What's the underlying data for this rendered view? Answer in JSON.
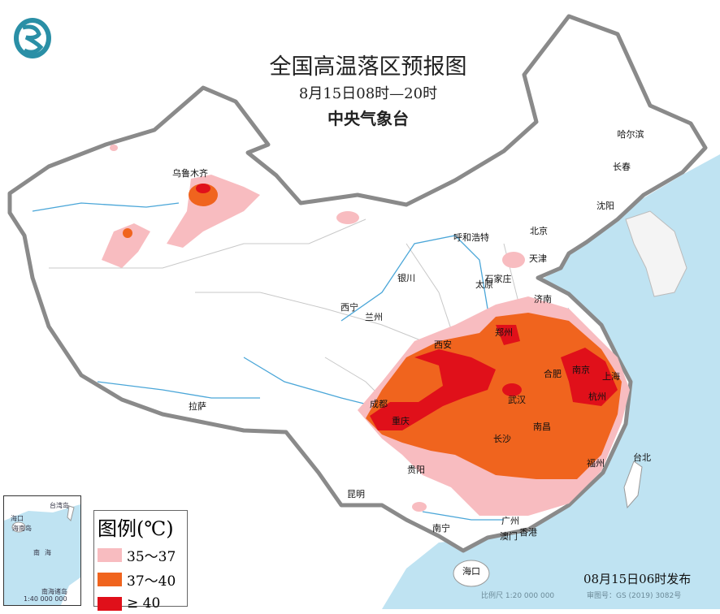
{
  "header": {
    "title": "全国高温落区预报图",
    "period": "8月15日08时—20时",
    "issuer": "中央气象台"
  },
  "legend": {
    "title": "图例(℃)",
    "items": [
      {
        "label": "35～37",
        "color": "#f8bcc0"
      },
      {
        "label": "37～40",
        "color": "#f0641e"
      },
      {
        "label": "≥ 40",
        "color": "#e0101a"
      }
    ]
  },
  "cities": [
    {
      "name": "哈尔滨"
    },
    {
      "name": "长春"
    },
    {
      "name": "沈阳"
    },
    {
      "name": "北京"
    },
    {
      "name": "天津"
    },
    {
      "name": "呼和浩特"
    },
    {
      "name": "石家庄"
    },
    {
      "name": "太原"
    },
    {
      "name": "济南"
    },
    {
      "name": "银川"
    },
    {
      "name": "西宁"
    },
    {
      "name": "兰州"
    },
    {
      "name": "西安"
    },
    {
      "name": "郑州"
    },
    {
      "name": "合肥"
    },
    {
      "name": "南京"
    },
    {
      "name": "上海"
    },
    {
      "name": "杭州"
    },
    {
      "name": "武汉"
    },
    {
      "name": "南昌"
    },
    {
      "name": "长沙"
    },
    {
      "name": "成都"
    },
    {
      "name": "重庆"
    },
    {
      "name": "贵阳"
    },
    {
      "name": "昆明"
    },
    {
      "name": "拉萨"
    },
    {
      "name": "乌鲁木齐"
    },
    {
      "name": "福州"
    },
    {
      "name": "台北"
    },
    {
      "name": "广州"
    },
    {
      "name": "香港"
    },
    {
      "name": "澳门"
    },
    {
      "name": "南宁"
    },
    {
      "name": "海口"
    }
  ],
  "inset": {
    "labels": [
      "海口",
      "海南岛",
      "台湾岛",
      "南海",
      "南海诸岛",
      "1:40 000 000"
    ]
  },
  "footer": {
    "published": "08月15日06时发布",
    "scale": "比例尺 1:20 000 000",
    "approval": "审图号：GS (2019) 3082号"
  },
  "colors": {
    "sea": "#bfe3f2",
    "border": "#8a8a8a",
    "river": "#4aa6d8"
  }
}
